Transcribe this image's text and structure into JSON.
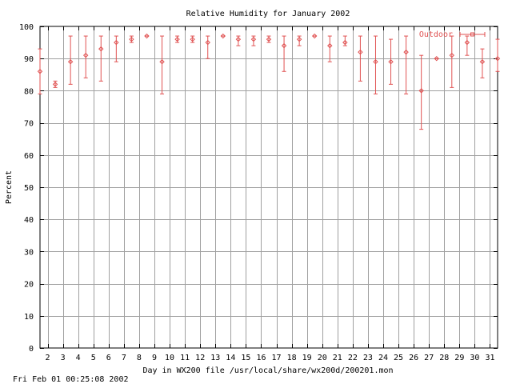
{
  "colors": {
    "series": "#e05252",
    "grid": "#a0a0a0",
    "axis": "#000000",
    "background": "#ffffff"
  },
  "footer_timestamp": "Fri Feb 01 00:25:08 2002",
  "chart_data": {
    "type": "scatter",
    "title": "Relative Humidity for January 2002",
    "xlabel": "Day in WX200 file /usr/local/share/wx200d/200201.mon",
    "ylabel": "Percent",
    "xlim": [
      1.5,
      31.5
    ],
    "ylim": [
      0,
      100
    ],
    "yticks": [
      0,
      10,
      20,
      30,
      40,
      50,
      60,
      70,
      80,
      90,
      100
    ],
    "xticks": [
      2,
      3,
      4,
      5,
      6,
      7,
      8,
      9,
      10,
      11,
      12,
      13,
      14,
      15,
      16,
      17,
      18,
      19,
      20,
      21,
      22,
      23,
      24,
      25,
      26,
      27,
      28,
      29,
      30,
      31
    ],
    "grid": true,
    "legend": {
      "position": "top-right",
      "entries": [
        "Outdoor"
      ]
    },
    "series": [
      {
        "name": "Outdoor",
        "points": [
          {
            "x": 1.5,
            "y": 86,
            "low": 79,
            "high": 93
          },
          {
            "x": 2.5,
            "y": 82,
            "low": 81,
            "high": 83
          },
          {
            "x": 3.5,
            "y": 89,
            "low": 82,
            "high": 97
          },
          {
            "x": 4.5,
            "y": 91,
            "low": 84,
            "high": 97
          },
          {
            "x": 5.5,
            "y": 93,
            "low": 83,
            "high": 97
          },
          {
            "x": 6.5,
            "y": 95,
            "low": 89,
            "high": 97
          },
          {
            "x": 7.5,
            "y": 96,
            "low": 95,
            "high": 97
          },
          {
            "x": 8.5,
            "y": 97,
            "low": 97,
            "high": 97
          },
          {
            "x": 9.5,
            "y": 89,
            "low": 79,
            "high": 97
          },
          {
            "x": 10.5,
            "y": 96,
            "low": 95,
            "high": 97
          },
          {
            "x": 11.5,
            "y": 96,
            "low": 95,
            "high": 97
          },
          {
            "x": 12.5,
            "y": 95,
            "low": 90,
            "high": 97
          },
          {
            "x": 13.5,
            "y": 97,
            "low": 97,
            "high": 97
          },
          {
            "x": 14.5,
            "y": 96,
            "low": 94,
            "high": 97
          },
          {
            "x": 15.5,
            "y": 96,
            "low": 94,
            "high": 97
          },
          {
            "x": 16.5,
            "y": 96,
            "low": 95,
            "high": 97
          },
          {
            "x": 17.5,
            "y": 94,
            "low": 86,
            "high": 97
          },
          {
            "x": 18.5,
            "y": 96,
            "low": 94,
            "high": 97
          },
          {
            "x": 19.5,
            "y": 97,
            "low": 97,
            "high": 97
          },
          {
            "x": 20.5,
            "y": 94,
            "low": 89,
            "high": 97
          },
          {
            "x": 21.5,
            "y": 95,
            "low": 94,
            "high": 97
          },
          {
            "x": 22.5,
            "y": 92,
            "low": 83,
            "high": 97
          },
          {
            "x": 23.5,
            "y": 89,
            "low": 79,
            "high": 97
          },
          {
            "x": 24.5,
            "y": 89,
            "low": 82,
            "high": 96
          },
          {
            "x": 25.5,
            "y": 92,
            "low": 79,
            "high": 97
          },
          {
            "x": 26.5,
            "y": 80,
            "low": 68,
            "high": 91
          },
          {
            "x": 27.5,
            "y": 90,
            "low": 90,
            "high": 90
          },
          {
            "x": 28.5,
            "y": 91,
            "low": 81,
            "high": 97
          },
          {
            "x": 29.5,
            "y": 95,
            "low": 91,
            "high": 97
          },
          {
            "x": 30.5,
            "y": 89,
            "low": 84,
            "high": 93
          },
          {
            "x": 31.5,
            "y": 90,
            "low": 86,
            "high": 96
          }
        ]
      }
    ]
  }
}
